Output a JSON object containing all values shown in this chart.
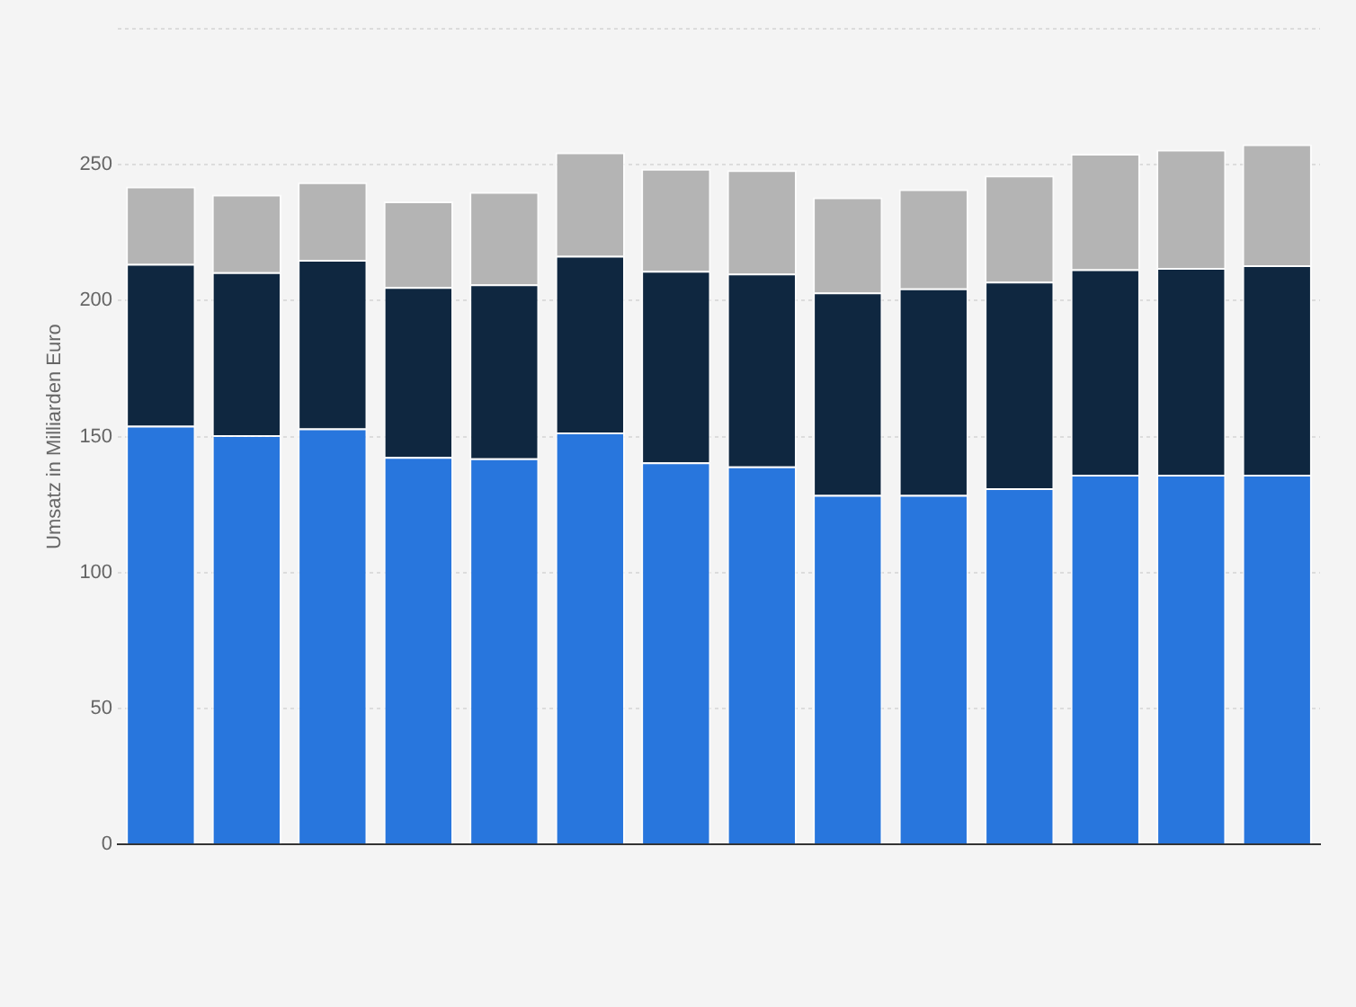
{
  "chart_data": {
    "type": "bar",
    "stacked": true,
    "ylabel": "Umsatz in Milliarden Euro",
    "categories": [
      null,
      null,
      null,
      null,
      null,
      null,
      null,
      null,
      null,
      null,
      null,
      null,
      null,
      null
    ],
    "series": [
      {
        "color": "#2876dd",
        "values": [
          154,
          150.5,
          153,
          142.5,
          142,
          151.5,
          140.5,
          139,
          128.5,
          128.5,
          131,
          136,
          136,
          136
        ]
      },
      {
        "color": "#0f2740",
        "values": [
          59.5,
          60,
          62,
          62.5,
          64,
          65,
          70.5,
          71,
          74.5,
          76,
          76,
          75.5,
          76,
          77
        ]
      },
      {
        "color": "#b4b4b4",
        "values": [
          28.5,
          28.5,
          28.5,
          31.5,
          34,
          38,
          37.5,
          38,
          35,
          36.5,
          39,
          42.5,
          43.5,
          44.5
        ]
      }
    ],
    "ylim": [
      0,
      300
    ],
    "yticks": [
      0,
      50,
      100,
      150,
      200,
      250,
      {
        "value": 300,
        "label": null
      }
    ],
    "grid": "y",
    "legend": false
  }
}
